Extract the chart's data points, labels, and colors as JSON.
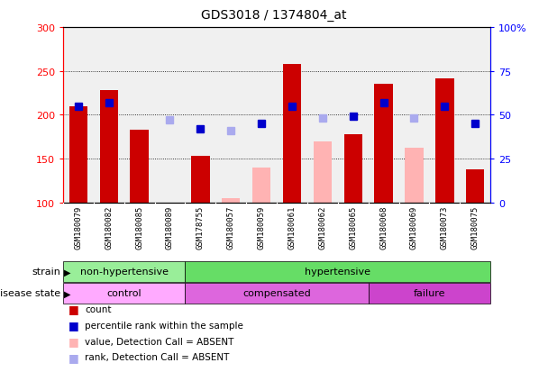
{
  "title": "GDS3018 / 1374804_at",
  "samples": [
    "GSM180079",
    "GSM180082",
    "GSM180085",
    "GSM180089",
    "GSM178755",
    "GSM180057",
    "GSM180059",
    "GSM180061",
    "GSM180062",
    "GSM180065",
    "GSM180068",
    "GSM180069",
    "GSM180073",
    "GSM180075"
  ],
  "count_values": [
    210,
    228,
    183,
    null,
    153,
    null,
    null,
    258,
    null,
    178,
    235,
    null,
    241,
    138
  ],
  "count_absent": [
    null,
    null,
    null,
    null,
    null,
    105,
    140,
    null,
    170,
    null,
    null,
    162,
    null,
    null
  ],
  "rank_present": [
    55,
    57,
    null,
    null,
    42,
    null,
    45,
    55,
    null,
    49,
    57,
    null,
    55,
    45
  ],
  "rank_absent": [
    null,
    null,
    null,
    47,
    null,
    41,
    null,
    null,
    48,
    null,
    null,
    48,
    null,
    null
  ],
  "count_bar_color": "#cc0000",
  "count_absent_bar_color": "#ffb3b3",
  "rank_present_color": "#0000cc",
  "rank_absent_color": "#aaaaee",
  "strain_groups": [
    {
      "label": "non-hypertensive",
      "start": 0,
      "end": 3,
      "color": "#99ee99"
    },
    {
      "label": "hypertensive",
      "start": 4,
      "end": 13,
      "color": "#66dd66"
    }
  ],
  "disease_groups": [
    {
      "label": "control",
      "start": 0,
      "end": 3,
      "color": "#ffaaff"
    },
    {
      "label": "compensated",
      "start": 4,
      "end": 9,
      "color": "#dd66dd"
    },
    {
      "label": "failure",
      "start": 10,
      "end": 13,
      "color": "#cc44cc"
    }
  ],
  "ylim_left": [
    100,
    300
  ],
  "ylim_right": [
    0,
    100
  ],
  "yticks_left": [
    100,
    150,
    200,
    250,
    300
  ],
  "yticks_right": [
    0,
    25,
    50,
    75,
    100
  ],
  "grid_lines": [
    150,
    200,
    250
  ],
  "xlim": [
    -0.5,
    13.5
  ],
  "bar_width": 0.6,
  "label_bg_color": "#c8c8c8",
  "plot_bg_color": "#f0f0f0"
}
